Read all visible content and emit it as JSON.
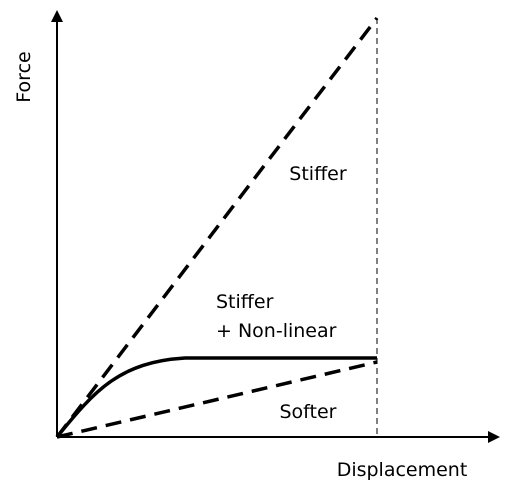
{
  "axes": {
    "y_label": "Force",
    "x_label": "Displacement"
  },
  "curves": [
    {
      "lines": [
        "Stiffer"
      ]
    },
    {
      "lines": [
        "Stiffer",
        "+ Non-linear"
      ]
    },
    {
      "lines": [
        "Softer"
      ]
    }
  ]
}
